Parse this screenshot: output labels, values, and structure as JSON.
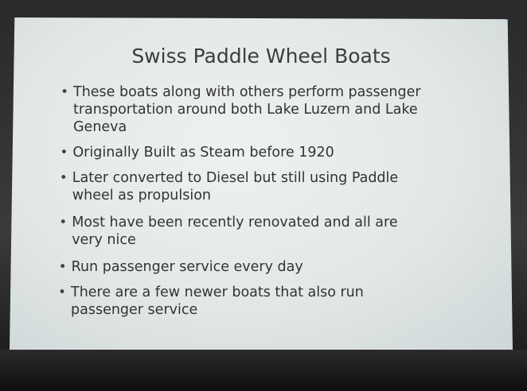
{
  "slide": {
    "title": "Swiss Paddle Wheel Boats",
    "bullets": [
      {
        "lines": [
          "These boats along with others perform passenger",
          "transportation around both Lake Luzern and Lake",
          "Geneva"
        ]
      },
      {
        "lines": [
          "Originally Built as Steam before 1920"
        ]
      },
      {
        "lines": [
          "Later converted to Diesel but still using Paddle",
          "wheel as propulsion"
        ]
      },
      {
        "lines": [
          "Most have been recently renovated and all are",
          "very nice"
        ]
      },
      {
        "lines": [
          "Run passenger service every day"
        ]
      },
      {
        "lines": [
          "There are a few newer boats that also run",
          "passenger service"
        ]
      }
    ]
  }
}
